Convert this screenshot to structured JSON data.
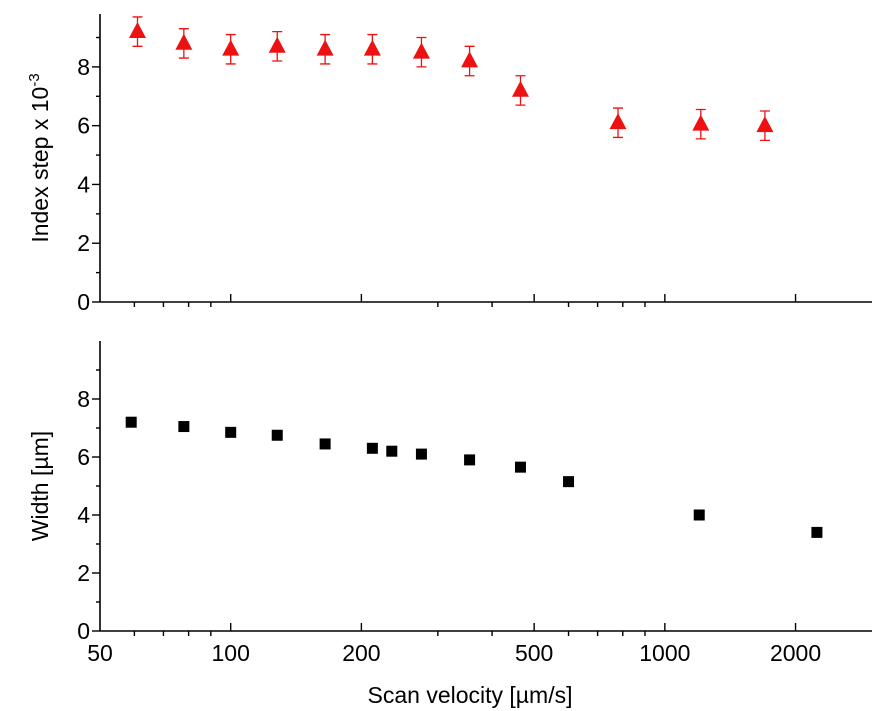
{
  "chart_data": [
    {
      "type": "scatter",
      "panel": "top",
      "ylabel": "Index step x 10",
      "ylabel_exponent": "-3",
      "xscale": "log",
      "xlim": [
        50,
        3000
      ],
      "ylim": [
        0,
        9.8
      ],
      "x_ticks": [
        50,
        100,
        200,
        500,
        1000,
        2000
      ],
      "y_ticks": [
        0,
        2,
        4,
        6,
        8
      ],
      "y_tick_labels": [
        "0",
        "2",
        "4",
        "6",
        "8"
      ],
      "marker": "triangle",
      "color": "#ee1111",
      "series": [
        {
          "points": [
            {
              "x": 61,
              "y": 9.2,
              "err": 0.5
            },
            {
              "x": 78,
              "y": 8.8,
              "err": 0.5
            },
            {
              "x": 100,
              "y": 8.6,
              "err": 0.5
            },
            {
              "x": 128,
              "y": 8.7,
              "err": 0.5
            },
            {
              "x": 165,
              "y": 8.6,
              "err": 0.5
            },
            {
              "x": 212,
              "y": 8.6,
              "err": 0.5
            },
            {
              "x": 275,
              "y": 8.5,
              "err": 0.5
            },
            {
              "x": 355,
              "y": 8.2,
              "err": 0.5
            },
            {
              "x": 465,
              "y": 7.2,
              "err": 0.5
            },
            {
              "x": 780,
              "y": 6.1,
              "err": 0.5
            },
            {
              "x": 1210,
              "y": 6.05,
              "err": 0.5
            },
            {
              "x": 1700,
              "y": 6.0,
              "err": 0.5
            }
          ]
        }
      ]
    },
    {
      "type": "scatter",
      "panel": "bottom",
      "xlabel": "Scan velocity [µm/s]",
      "ylabel": "Width [µm]",
      "xscale": "log",
      "xlim": [
        50,
        3000
      ],
      "ylim": [
        0,
        10
      ],
      "x_ticks": [
        50,
        100,
        200,
        500,
        1000,
        2000
      ],
      "x_tick_labels": [
        "50",
        "100",
        "200",
        "500",
        "1000",
        "2000"
      ],
      "y_ticks": [
        0,
        2,
        4,
        6,
        8
      ],
      "y_tick_labels": [
        "0",
        "2",
        "4",
        "6",
        "8"
      ],
      "marker": "square",
      "color": "#000000",
      "series": [
        {
          "points": [
            {
              "x": 59,
              "y": 7.2
            },
            {
              "x": 78,
              "y": 7.05
            },
            {
              "x": 100,
              "y": 6.85
            },
            {
              "x": 128,
              "y": 6.75
            },
            {
              "x": 165,
              "y": 6.45
            },
            {
              "x": 212,
              "y": 6.3
            },
            {
              "x": 235,
              "y": 6.2
            },
            {
              "x": 275,
              "y": 6.1
            },
            {
              "x": 355,
              "y": 5.9
            },
            {
              "x": 465,
              "y": 5.65
            },
            {
              "x": 600,
              "y": 5.15
            },
            {
              "x": 1200,
              "y": 4.0
            },
            {
              "x": 2240,
              "y": 3.4
            }
          ]
        }
      ]
    }
  ]
}
